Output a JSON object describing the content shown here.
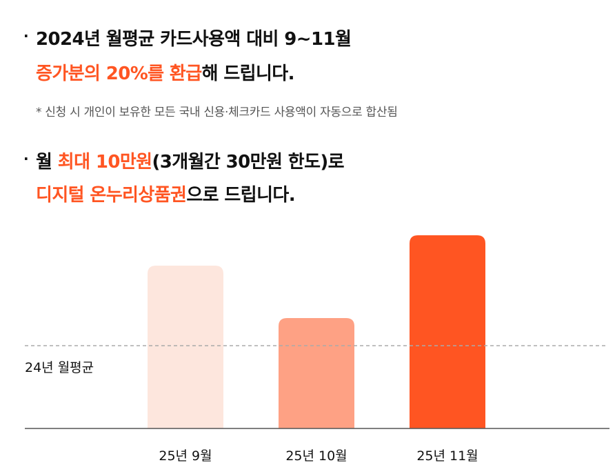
{
  "bullets": {
    "b1": "·",
    "b2": "·"
  },
  "block1": {
    "line1": "2024년 월평균 카드사용액 대비 9~11월",
    "line2_accent": "증가분의 20%를 환급",
    "line2_rest": "해 드립니다.",
    "note": "* 신청 시 개인이 보유한 모든 국내 신용·체크카드 사용액이 자동으로 합산됨"
  },
  "block2": {
    "line1_pre": "월 ",
    "line1_accent": "최대 10만원",
    "line1_rest": "(3개월간 30만원 한도)로",
    "line2_accent": "디지털 온누리상품권",
    "line2_rest": "으로 드립니다."
  },
  "chart_data": {
    "type": "bar",
    "categories": [
      "25년 9월",
      "25년 10월",
      "25년 11월"
    ],
    "values": [
      118,
      80,
      140
    ],
    "colors": [
      "#fde6dd",
      "#fea184",
      "#ff5522"
    ],
    "reference_line": {
      "label": "24년 월평균",
      "value": 60,
      "style": "dashed",
      "color": "#aaaaaa"
    },
    "ylim": [
      0,
      150
    ],
    "grid": false,
    "legend": "none",
    "title": "",
    "xlabel": "",
    "ylabel": ""
  }
}
